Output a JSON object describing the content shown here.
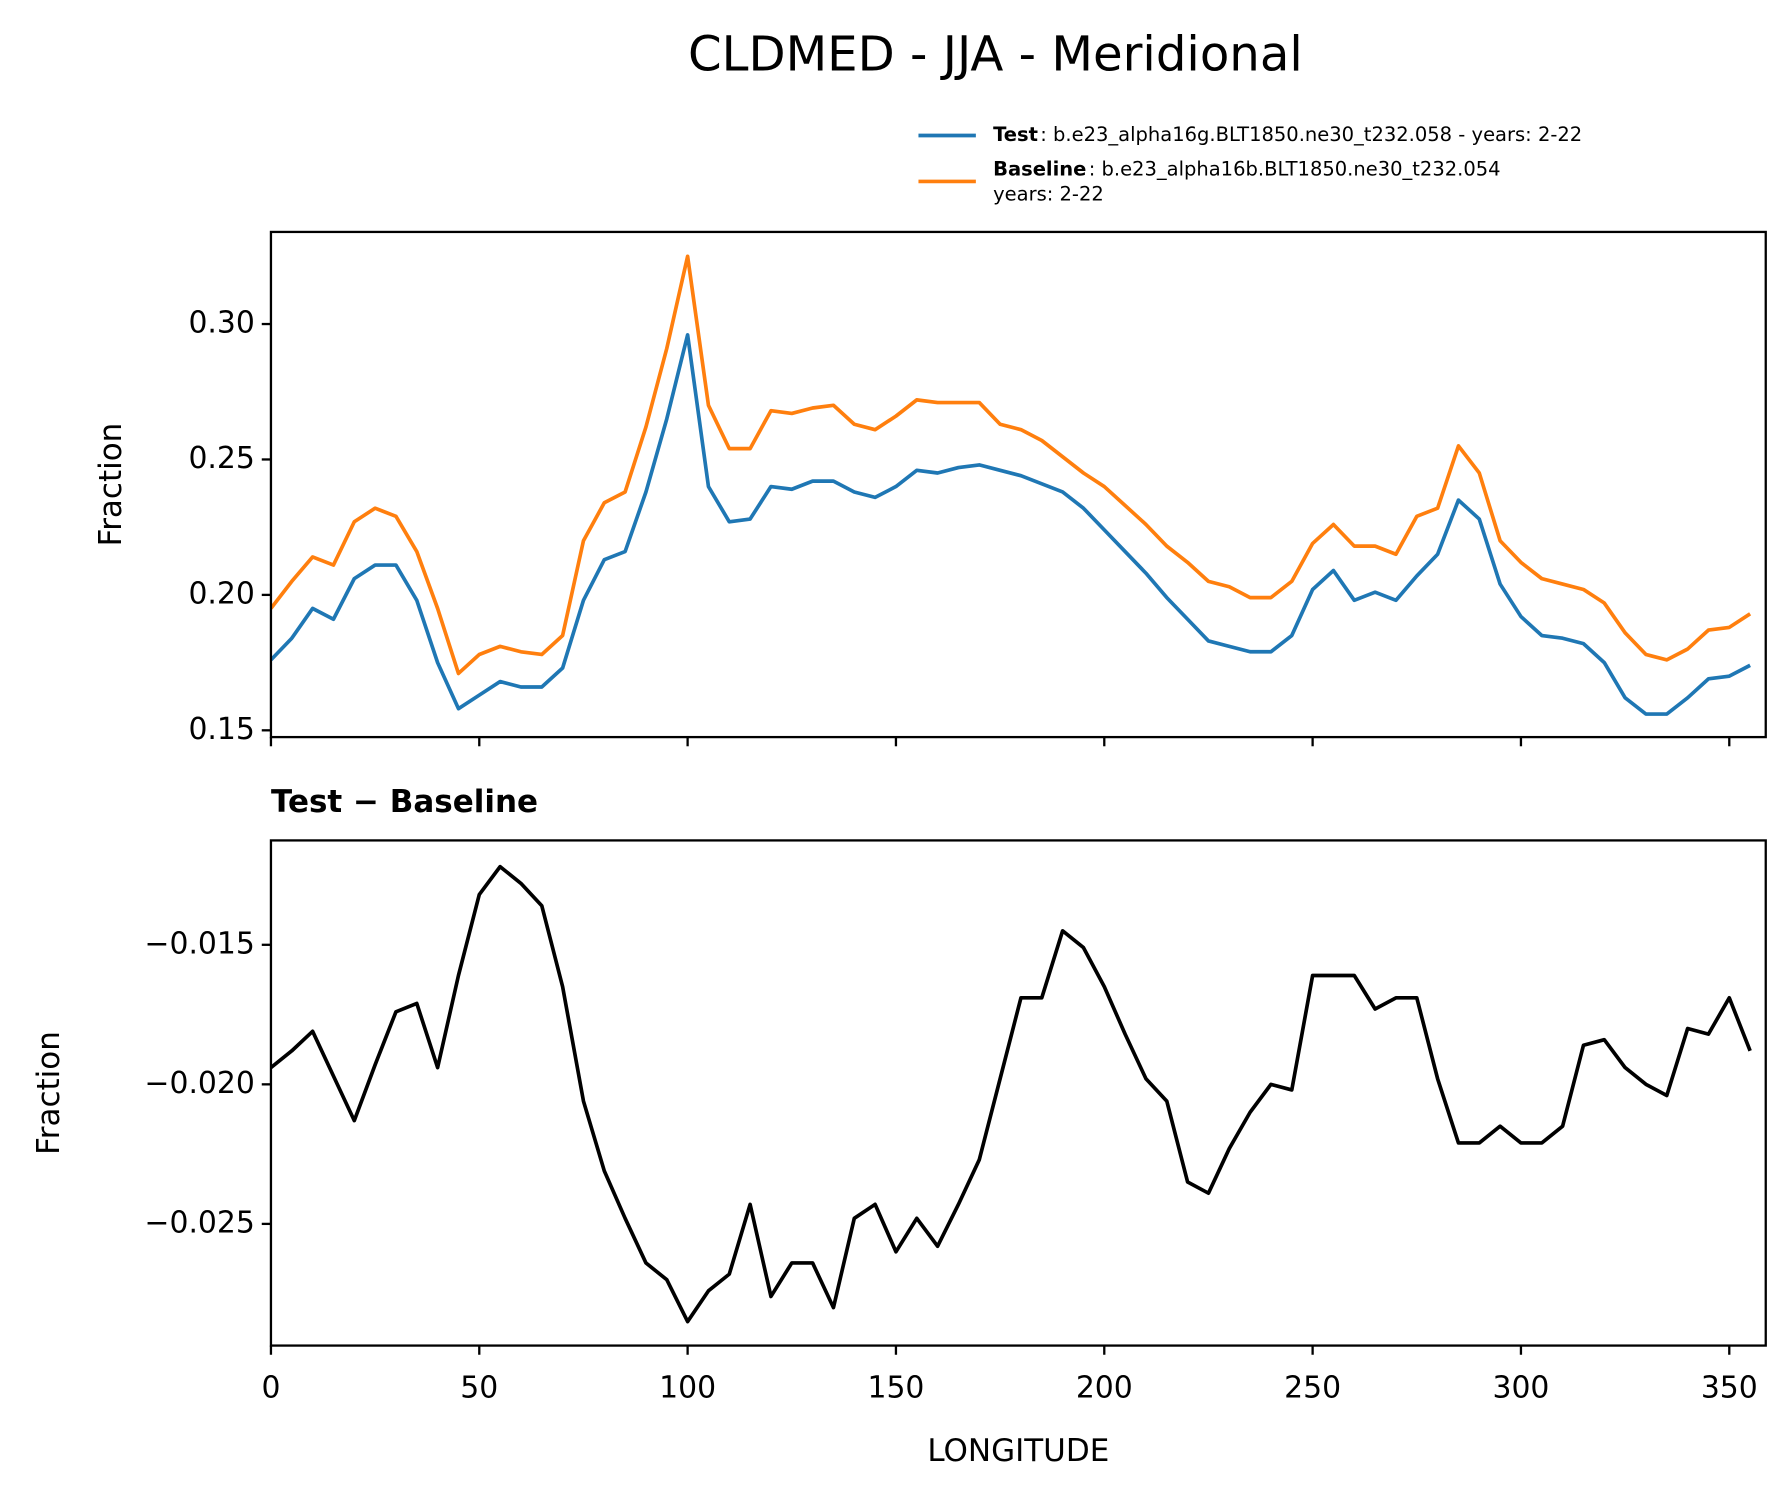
{
  "chart_data": [
    {
      "type": "line",
      "title": "CLDMED - JJA - Meridional",
      "ylabel": "Fraction",
      "x": [
        0,
        5,
        10,
        15,
        20,
        25,
        30,
        35,
        40,
        45,
        50,
        55,
        60,
        65,
        70,
        75,
        80,
        85,
        90,
        95,
        100,
        105,
        110,
        115,
        120,
        125,
        130,
        135,
        140,
        145,
        150,
        155,
        160,
        165,
        170,
        175,
        180,
        185,
        190,
        195,
        200,
        205,
        210,
        215,
        220,
        225,
        230,
        235,
        240,
        245,
        250,
        255,
        260,
        265,
        270,
        275,
        280,
        285,
        290,
        295,
        300,
        305,
        310,
        315,
        320,
        325,
        330,
        335,
        340,
        345,
        350,
        355
      ],
      "series": [
        {
          "name": "Test",
          "label": ": b.e23_alpha16g.BLT1850.ne30_t232.058 - years: 2-22",
          "color": "#1f77b4",
          "values": [
            0.176,
            0.184,
            0.195,
            0.191,
            0.206,
            0.211,
            0.211,
            0.198,
            0.175,
            0.158,
            0.163,
            0.168,
            0.166,
            0.166,
            0.173,
            0.198,
            0.213,
            0.216,
            0.238,
            0.265,
            0.296,
            0.24,
            0.227,
            0.228,
            0.24,
            0.239,
            0.242,
            0.242,
            0.238,
            0.236,
            0.24,
            0.246,
            0.245,
            0.247,
            0.248,
            0.246,
            0.244,
            0.241,
            0.238,
            0.232,
            0.224,
            0.216,
            0.208,
            0.199,
            0.191,
            0.183,
            0.181,
            0.179,
            0.179,
            0.185,
            0.202,
            0.209,
            0.198,
            0.201,
            0.198,
            0.207,
            0.215,
            0.235,
            0.228,
            0.204,
            0.192,
            0.185,
            0.184,
            0.182,
            0.175,
            0.162,
            0.156,
            0.156,
            0.162,
            0.169,
            0.17,
            0.174
          ]
        },
        {
          "name": "Baseline",
          "label": [
            ": b.e23_alpha16b.BLT1850.ne30_t232.054",
            "years: 2-22"
          ],
          "color": "#ff7f0e",
          "values": [
            0.195,
            0.205,
            0.214,
            0.211,
            0.227,
            0.232,
            0.229,
            0.216,
            0.195,
            0.171,
            0.178,
            0.181,
            0.179,
            0.178,
            0.185,
            0.22,
            0.234,
            0.238,
            0.262,
            0.291,
            0.325,
            0.27,
            0.254,
            0.254,
            0.268,
            0.267,
            0.269,
            0.27,
            0.263,
            0.261,
            0.266,
            0.272,
            0.271,
            0.271,
            0.271,
            0.263,
            0.261,
            0.257,
            0.251,
            0.245,
            0.24,
            0.233,
            0.226,
            0.218,
            0.212,
            0.205,
            0.203,
            0.199,
            0.199,
            0.205,
            0.219,
            0.226,
            0.218,
            0.218,
            0.215,
            0.229,
            0.232,
            0.255,
            0.245,
            0.22,
            0.212,
            0.206,
            0.204,
            0.202,
            0.197,
            0.186,
            0.178,
            0.176,
            0.18,
            0.187,
            0.188,
            0.193
          ]
        }
      ],
      "xlim": [
        0,
        358.75
      ],
      "xticks": [
        0,
        50,
        100,
        150,
        200,
        250,
        300,
        350
      ],
      "xtick_labels": false,
      "ylim": [
        0.1475,
        0.334
      ],
      "yticks": [
        0.15,
        {
          "value": 0.2,
          "label": "0.20"
        },
        0.25,
        {
          "value": 0.3,
          "label": "0.30"
        }
      ],
      "legend": "top-right",
      "grid": false
    },
    {
      "type": "line",
      "title": "Test − Baseline",
      "ylabel": "Fraction",
      "xlabel": "LONGITUDE",
      "x": [
        0,
        5,
        10,
        15,
        20,
        25,
        30,
        35,
        40,
        45,
        50,
        55,
        60,
        65,
        70,
        75,
        80,
        85,
        90,
        95,
        100,
        105,
        110,
        115,
        120,
        125,
        130,
        135,
        140,
        145,
        150,
        155,
        160,
        165,
        170,
        175,
        180,
        185,
        190,
        195,
        200,
        205,
        210,
        215,
        220,
        225,
        230,
        235,
        240,
        245,
        250,
        255,
        260,
        265,
        270,
        275,
        280,
        285,
        290,
        295,
        300,
        305,
        310,
        315,
        320,
        325,
        330,
        335,
        340,
        345,
        350,
        355
      ],
      "series": [
        {
          "color": "#000000",
          "values": [
            -0.0194,
            -0.0188,
            -0.0181,
            -0.0197,
            -0.0213,
            -0.0193,
            -0.0174,
            -0.0171,
            -0.0194,
            -0.0161,
            -0.0132,
            -0.0122,
            -0.0128,
            -0.0136,
            -0.0165,
            -0.0206,
            -0.0231,
            -0.0248,
            -0.0264,
            -0.027,
            -0.0285,
            -0.0274,
            -0.0268,
            -0.0243,
            -0.0276,
            -0.0264,
            -0.0264,
            -0.028,
            -0.0248,
            -0.0243,
            -0.026,
            -0.0248,
            -0.0258,
            -0.0243,
            -0.0227,
            -0.0198,
            -0.0169,
            -0.0169,
            -0.0145,
            -0.0151,
            -0.0165,
            -0.0182,
            -0.0198,
            -0.0206,
            -0.0235,
            -0.0239,
            -0.0223,
            -0.021,
            -0.02,
            -0.0202,
            -0.0161,
            -0.0161,
            -0.0161,
            -0.0173,
            -0.0169,
            -0.0169,
            -0.0198,
            -0.0221,
            -0.0221,
            -0.0215,
            -0.0221,
            -0.0221,
            -0.0215,
            -0.0186,
            -0.0184,
            -0.0194,
            -0.02,
            -0.0204,
            -0.018,
            -0.0182,
            -0.0169,
            -0.0188
          ]
        }
      ],
      "xlim": [
        0,
        358.75
      ],
      "xticks": [
        0,
        50,
        100,
        150,
        200,
        250,
        300,
        350
      ],
      "ylim": [
        -0.02936,
        -0.01126
      ],
      "yticks": [
        {
          "value": -0.025,
          "label": "−0.025"
        },
        {
          "value": -0.02,
          "label": "−0.020"
        },
        {
          "value": -0.015,
          "label": "−0.015"
        }
      ],
      "grid": false
    }
  ]
}
